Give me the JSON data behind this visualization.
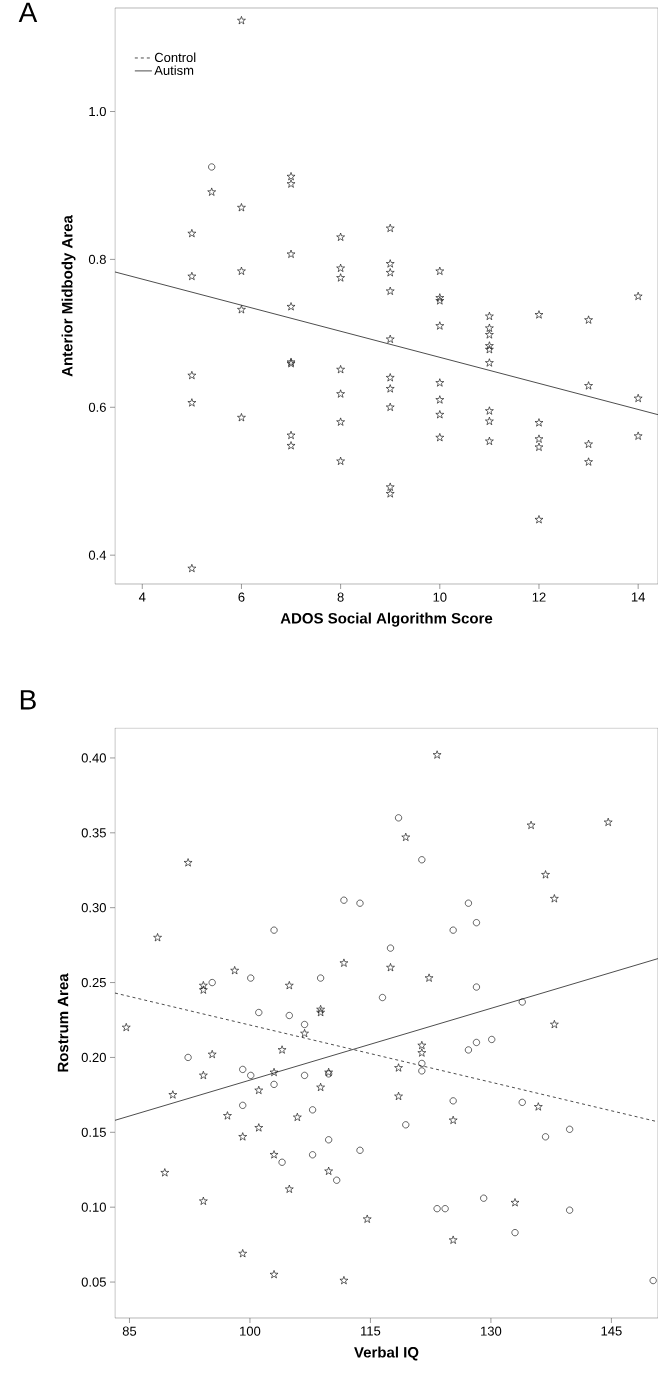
{
  "chart_data": [
    {
      "type": "scatter",
      "title": "A",
      "xlabel": "ADOS Social Algorithm Score",
      "ylabel": "Anterior Midbody Area",
      "xlim": [
        3.45,
        14.4
      ],
      "ylim": [
        0.361,
        1.14
      ],
      "xticks": [
        4,
        6,
        8,
        10,
        12,
        14
      ],
      "yticks": [
        0.4,
        0.6,
        0.8,
        {
          "value": 1.0,
          "label": "1.0"
        }
      ],
      "legend": "top left",
      "series": [
        {
          "name": "Control",
          "type": "line",
          "line_style": "dashed",
          "color": "#000000"
        },
        {
          "name": "Autism",
          "type": "line",
          "line_style": "solid",
          "color": "#000000",
          "x": [
            3.45,
            14.4
          ],
          "values": [
            0.783,
            0.59
          ]
        },
        {
          "type": "scatter",
          "marker": "circle",
          "color": "#000000",
          "x": [
            5.4
          ],
          "values": [
            0.925
          ]
        },
        {
          "type": "scatter",
          "marker": "star",
          "color": "#000000",
          "x": [
            6,
            5.4,
            6,
            7,
            7,
            5,
            8,
            9,
            7,
            5,
            6,
            8,
            8,
            9,
            9,
            9,
            10,
            10,
            10,
            14,
            6,
            7,
            9,
            10,
            11,
            11,
            11,
            11,
            11,
            11,
            12,
            13,
            7,
            7,
            5,
            5,
            8,
            8,
            8,
            8,
            9,
            9,
            9,
            9,
            9,
            10,
            10,
            10,
            10,
            11,
            11,
            11,
            12,
            12,
            12,
            12,
            13,
            13,
            13,
            14,
            14,
            6,
            7,
            7,
            5
          ],
          "values": [
            1.123,
            0.891,
            0.87,
            0.912,
            0.902,
            0.835,
            0.83,
            0.842,
            0.807,
            0.777,
            0.784,
            0.788,
            0.775,
            0.794,
            0.782,
            0.757,
            0.784,
            0.748,
            0.744,
            0.75,
            0.732,
            0.736,
            0.692,
            0.71,
            0.723,
            0.707,
            0.698,
            0.683,
            0.678,
            0.66,
            0.725,
            0.718,
            0.659,
            0.661,
            0.643,
            0.606,
            0.651,
            0.618,
            0.58,
            0.527,
            0.64,
            0.625,
            0.6,
            0.492,
            0.483,
            0.633,
            0.61,
            0.59,
            0.559,
            0.595,
            0.581,
            0.554,
            0.579,
            0.557,
            0.546,
            0.448,
            0.629,
            0.55,
            0.526,
            0.612,
            0.561,
            0.586,
            0.562,
            0.548,
            0.382
          ]
        }
      ]
    },
    {
      "type": "scatter",
      "title": "B",
      "xlabel": "Verbal IQ",
      "ylabel": "Rostrum Area",
      "xlim": [
        83.2,
        150.8
      ],
      "ylim": [
        0.026,
        0.42
      ],
      "xticks": [
        85,
        100,
        115,
        130,
        145
      ],
      "yticks": [
        0.05,
        {
          "value": 0.1,
          "label": "0.10"
        },
        0.15,
        {
          "value": 0.2,
          "label": "0.20"
        },
        0.25,
        {
          "value": 0.3,
          "label": "0.30"
        },
        0.35,
        {
          "value": 0.4,
          "label": "0.40"
        }
      ],
      "series": [
        {
          "type": "line",
          "line_style": "dashed",
          "color": "#000000",
          "x": [
            83.2,
            150.8
          ],
          "values": [
            0.243,
            0.157
          ]
        },
        {
          "type": "line",
          "line_style": "solid",
          "color": "#000000",
          "x": [
            83.2,
            150.8
          ],
          "values": [
            0.158,
            0.266
          ]
        },
        {
          "type": "scatter",
          "marker": "circle",
          "color": "#000000",
          "x": [
            118.5,
            121.4,
            111.7,
            113.7,
            127.2,
            103.0,
            125.3,
            128.2,
            117.5,
            95.3,
            100.1,
            108.8,
            128.2,
            116.5,
            133.9,
            101.1,
            104.9,
            106.8,
            92.3,
            99.1,
            100.1,
            103.0,
            106.8,
            109.8,
            121.4,
            121.4,
            127.2,
            128.2,
            130.1,
            125.3,
            133.9,
            99.1,
            107.8,
            119.4,
            136.8,
            139.8,
            109.8,
            113.7,
            107.8,
            104.0,
            110.8,
            123.3,
            124.3,
            129.1,
            139.8,
            133.0,
            150.2
          ],
          "values": [
            0.36,
            0.332,
            0.305,
            0.303,
            0.303,
            0.285,
            0.285,
            0.29,
            0.273,
            0.25,
            0.253,
            0.253,
            0.247,
            0.24,
            0.237,
            0.23,
            0.228,
            0.222,
            0.2,
            0.192,
            0.188,
            0.182,
            0.188,
            0.189,
            0.196,
            0.191,
            0.205,
            0.21,
            0.212,
            0.171,
            0.17,
            0.168,
            0.165,
            0.155,
            0.147,
            0.152,
            0.145,
            0.138,
            0.135,
            0.13,
            0.118,
            0.099,
            0.099,
            0.106,
            0.098,
            0.083,
            0.051
          ]
        },
        {
          "type": "scatter",
          "marker": "star",
          "color": "#000000",
          "x": [
            123.3,
            135.0,
            144.6,
            119.4,
            92.3,
            136.8,
            137.9,
            88.5,
            98.1,
            111.7,
            117.5,
            122.3,
            104.9,
            94.2,
            94.2,
            108.8,
            108.8,
            84.6,
            137.9,
            106.8,
            121.4,
            121.4,
            95.3,
            104.0,
            94.2,
            103.0,
            109.8,
            118.5,
            90.4,
            101.1,
            108.8,
            118.5,
            135.9,
            97.2,
            105.9,
            101.1,
            99.1,
            125.3,
            103.0,
            89.4,
            109.8,
            104.9,
            94.2,
            133.0,
            114.6,
            125.3,
            99.1,
            103.0,
            111.7
          ],
          "values": [
            0.402,
            0.355,
            0.357,
            0.347,
            0.33,
            0.322,
            0.306,
            0.28,
            0.258,
            0.263,
            0.26,
            0.253,
            0.248,
            0.248,
            0.245,
            0.232,
            0.23,
            0.22,
            0.222,
            0.216,
            0.208,
            0.203,
            0.202,
            0.205,
            0.188,
            0.19,
            0.19,
            0.193,
            0.175,
            0.178,
            0.18,
            0.174,
            0.167,
            0.161,
            0.16,
            0.153,
            0.147,
            0.158,
            0.135,
            0.123,
            0.124,
            0.112,
            0.104,
            0.103,
            0.092,
            0.078,
            0.069,
            0.055,
            0.051
          ]
        }
      ]
    }
  ]
}
